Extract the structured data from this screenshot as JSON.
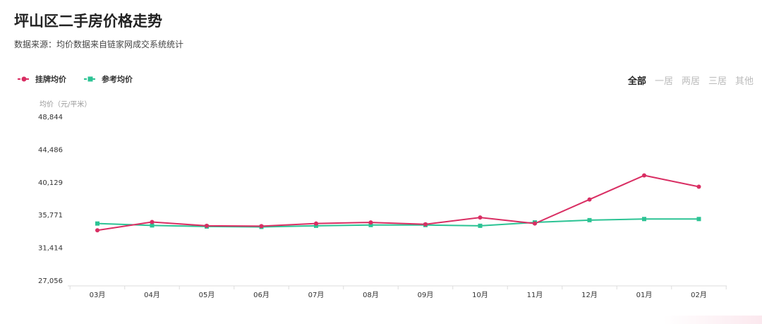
{
  "header": {
    "title": "坪山区二手房价格走势",
    "subtitle": "数据来源：均价数据来自链家网成交系统统计"
  },
  "filters": [
    "全部",
    "一居",
    "两居",
    "三居",
    "其他"
  ],
  "active_filter": 0,
  "colors": {
    "listing": "#d92e63",
    "reference": "#2cc394",
    "axis": "#dddddd"
  },
  "chart_data": {
    "type": "line",
    "title": "坪山区二手房价格走势",
    "ylabel": "均价（元/平米）",
    "xlabel": "",
    "categories": [
      "03月",
      "04月",
      "05月",
      "06月",
      "07月",
      "08月",
      "09月",
      "10月",
      "11月",
      "12月",
      "01月",
      "02月"
    ],
    "yticks": [
      "27,056",
      "31,414",
      "35,771",
      "40,129",
      "44,486",
      "48,844"
    ],
    "ylim": [
      27056,
      48844
    ],
    "legend_position": "top-left",
    "grid": false,
    "series": [
      {
        "name": "挂牌均价",
        "values": [
          33700,
          34800,
          34300,
          34250,
          34600,
          34750,
          34500,
          35400,
          34600,
          37800,
          41000,
          39500
        ]
      },
      {
        "name": "参考均价",
        "values": [
          34600,
          34350,
          34200,
          34150,
          34300,
          34400,
          34400,
          34300,
          34750,
          35050,
          35200,
          35200
        ]
      }
    ]
  }
}
